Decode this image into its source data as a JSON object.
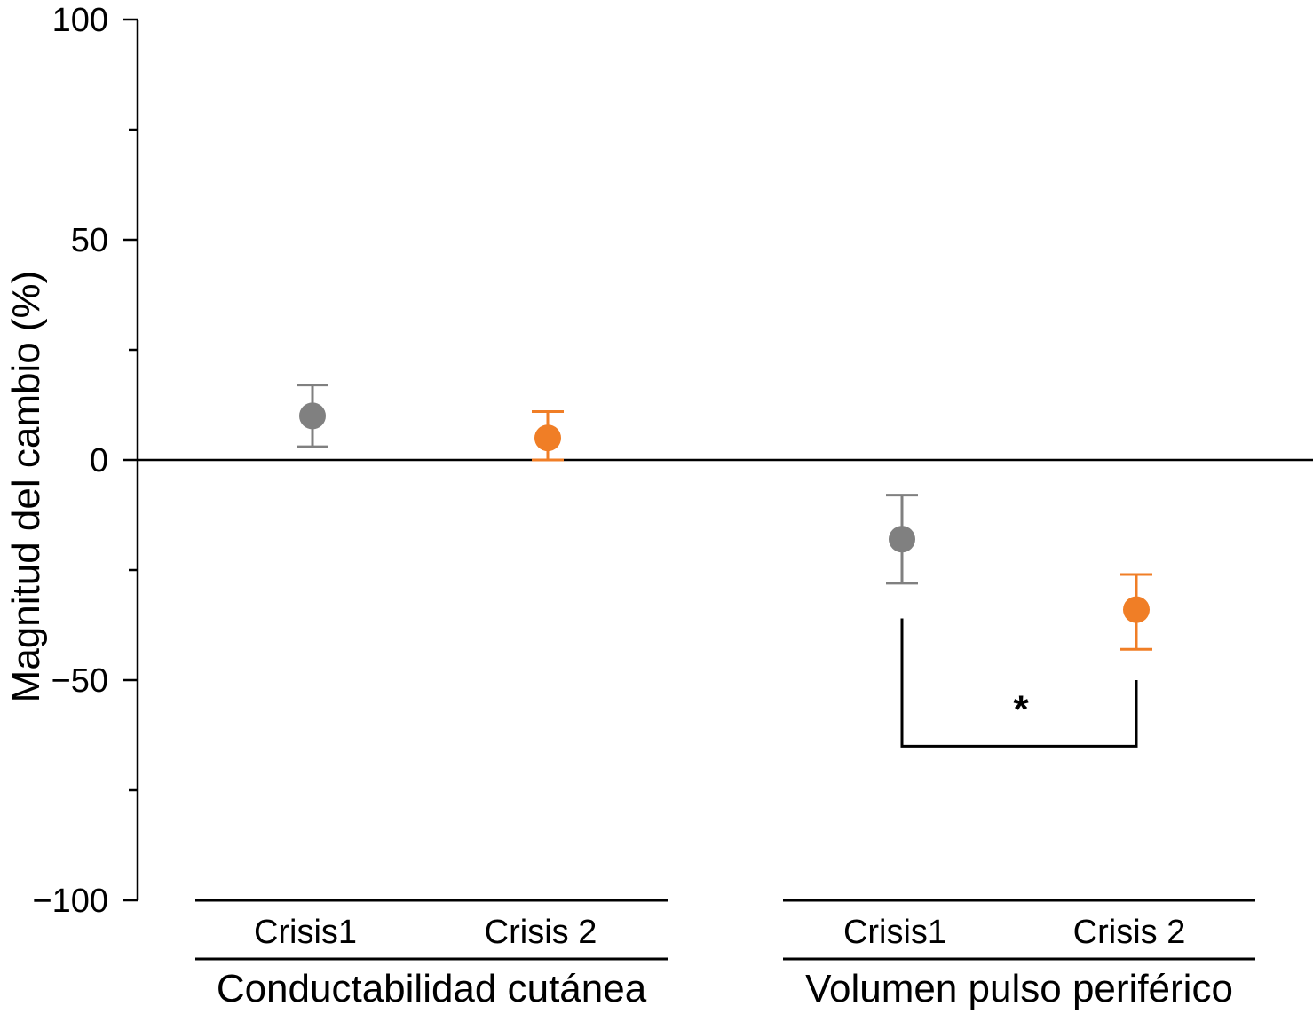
{
  "chart_data": {
    "type": "scatter",
    "title": "",
    "ylabel": "Magnitud del cambio (%)",
    "xlabel": "",
    "ylim": [
      -100,
      100
    ],
    "yticks": [
      100,
      50,
      0,
      -50,
      -100
    ],
    "ytick_labels": [
      "100",
      "50",
      "0",
      "−50",
      "−100"
    ],
    "groups": [
      {
        "name": "Conductabilidad cutánea",
        "points": [
          {
            "label": "Crisis1",
            "mean": 10,
            "upper": 17,
            "lower": 3,
            "color": "#808080"
          },
          {
            "label": "Crisis 2",
            "mean": 5,
            "upper": 11,
            "lower": 0,
            "color": "#f07e26"
          }
        ]
      },
      {
        "name": "Volumen pulso periférico",
        "points": [
          {
            "label": "Crisis1",
            "mean": -18,
            "upper": -8,
            "lower": -28,
            "color": "#808080"
          },
          {
            "label": "Crisis 2",
            "mean": -34,
            "upper": -26,
            "lower": -43,
            "color": "#f07e26"
          }
        ]
      }
    ],
    "significance": {
      "label": "*",
      "group": 1
    }
  }
}
